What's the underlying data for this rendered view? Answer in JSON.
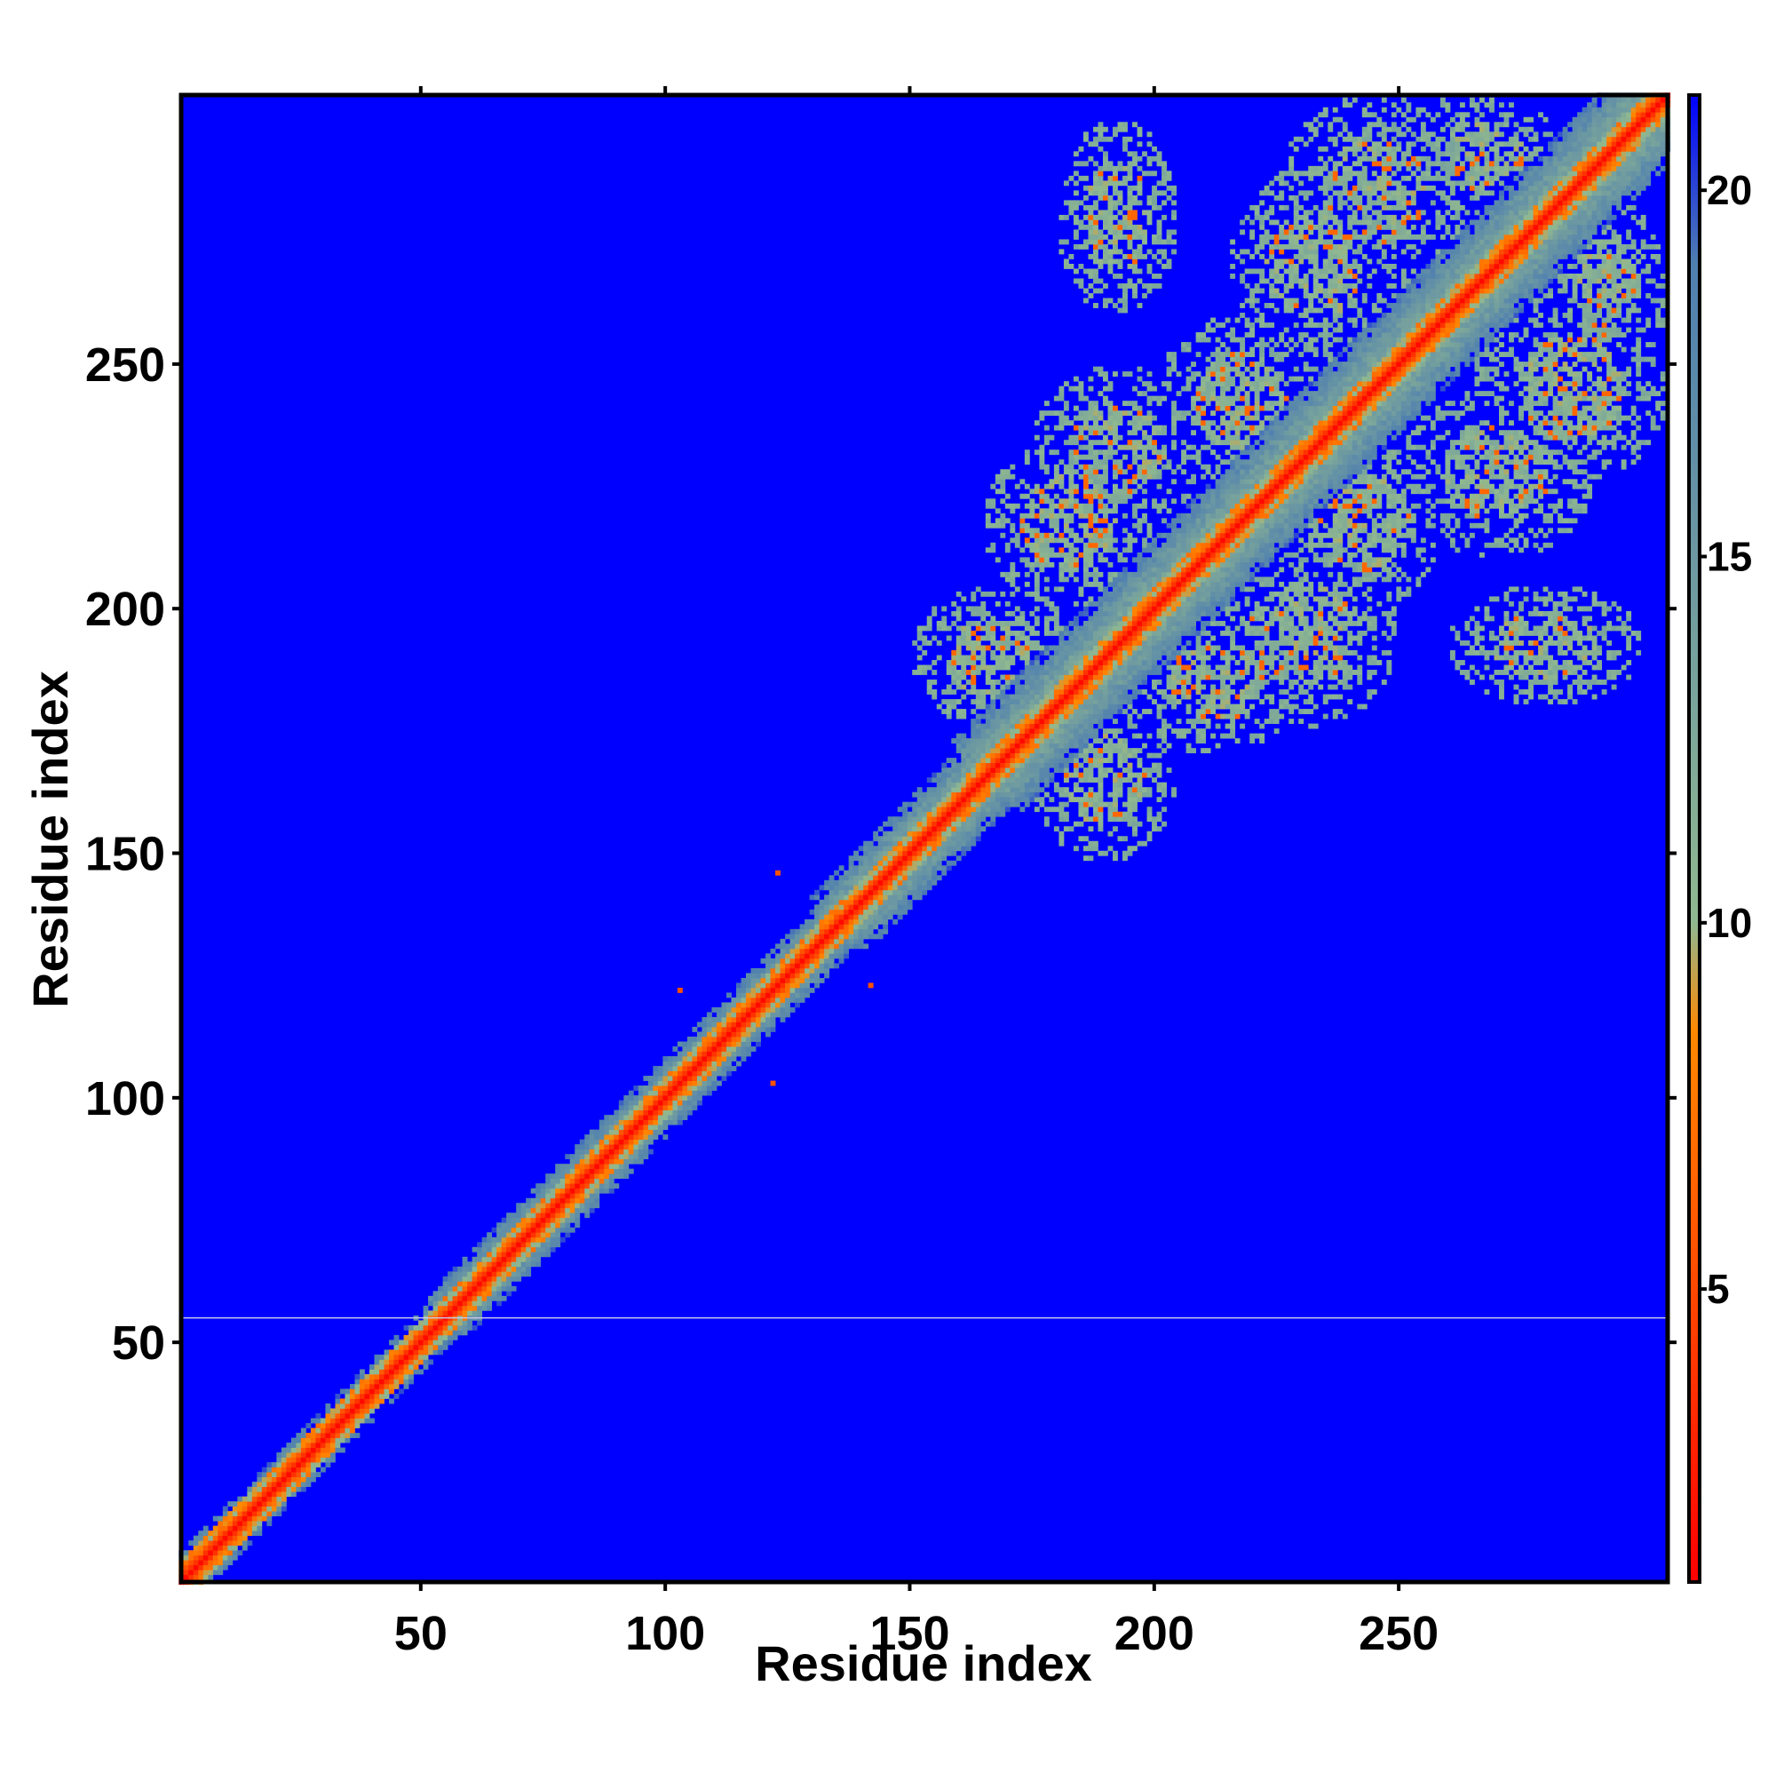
{
  "chart_data": {
    "type": "heatmap",
    "title": "",
    "xlabel": "Residue index",
    "ylabel": "Residue index",
    "xlim": [
      1,
      305
    ],
    "ylim": [
      1,
      305
    ],
    "xticks": [
      50,
      100,
      150,
      200,
      250
    ],
    "yticks": [
      50,
      100,
      150,
      200,
      250
    ],
    "grid": false,
    "colorbar": {
      "range": [
        1,
        21.3
      ],
      "ticks": [
        5,
        10,
        15,
        20
      ],
      "colors": [
        "#ff0000",
        "#ff8800",
        "#90b890",
        "#4f7fb0",
        "#0000ff"
      ],
      "color_stops": [
        1,
        8.5,
        10,
        19,
        21.3
      ]
    },
    "background_value": 21.3,
    "diagonal_band": [
      {
        "from": 1,
        "to": 55,
        "width": 6
      },
      {
        "from": 55,
        "to": 135,
        "width": 8
      },
      {
        "from": 135,
        "to": 165,
        "width": 11
      },
      {
        "from": 165,
        "to": 305,
        "width": 14
      }
    ],
    "contact_blocks": [
      {
        "x": [
          175,
          205
        ],
        "y": [
          148,
          182
        ]
      },
      {
        "x": [
          150,
          185
        ],
        "y": [
          175,
          205
        ]
      },
      {
        "x": [
          165,
          200
        ],
        "y": [
          200,
          235
        ]
      },
      {
        "x": [
          195,
          230
        ],
        "y": [
          170,
          200
        ]
      },
      {
        "x": [
          210,
          250
        ],
        "y": [
          175,
          215
        ]
      },
      {
        "x": [
          175,
          210
        ],
        "y": [
          215,
          250
        ]
      },
      {
        "x": [
          225,
          260
        ],
        "y": [
          200,
          235
        ]
      },
      {
        "x": [
          200,
          235
        ],
        "y": [
          225,
          260
        ]
      },
      {
        "x": [
          250,
          290
        ],
        "y": [
          210,
          245
        ]
      },
      {
        "x": [
          215,
          250
        ],
        "y": [
          250,
          290
        ]
      },
      {
        "x": [
          265,
          305
        ],
        "y": [
          225,
          265
        ]
      },
      {
        "x": [
          225,
          265
        ],
        "y": [
          265,
          305
        ]
      },
      {
        "x": [
          280,
          305
        ],
        "y": [
          245,
          285
        ]
      },
      {
        "x": [
          245,
          285
        ],
        "y": [
          280,
          305
        ]
      },
      {
        "x": [
          260,
          300
        ],
        "y": [
          180,
          205
        ]
      },
      {
        "x": [
          180,
          205
        ],
        "y": [
          260,
          300
        ]
      }
    ],
    "isolated_contacts": [
      {
        "x": 103,
        "y": 122
      },
      {
        "x": 122,
        "y": 103
      },
      {
        "x": 123,
        "y": 146
      },
      {
        "x": 142,
        "y": 123
      }
    ],
    "reference_line_y": 55
  }
}
